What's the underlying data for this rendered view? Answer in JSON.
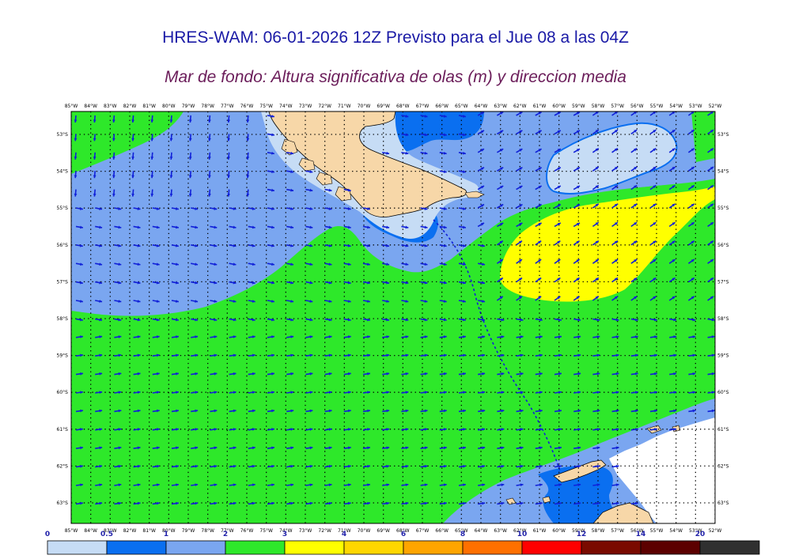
{
  "header": {
    "title": "HRES-WAM: 06-01-2026 12Z Previsto para el Jue 08 a las 04Z",
    "subtitle": "Mar de fondo: Altura significativa de olas (m) y direccion media"
  },
  "axes": {
    "lon_labels": [
      "85°W",
      "84°W",
      "83°W",
      "82°W",
      "81°W",
      "80°W",
      "79°W",
      "78°W",
      "77°W",
      "76°W",
      "75°W",
      "74°W",
      "73°W",
      "72°W",
      "71°W",
      "70°W",
      "69°W",
      "68°W",
      "67°W",
      "66°W",
      "65°W",
      "64°W",
      "63°W",
      "62°W",
      "61°W",
      "60°W",
      "59°W",
      "58°W",
      "57°W",
      "56°W",
      "55°W",
      "54°W",
      "53°W",
      "52°W"
    ],
    "lat_labels": [
      "53°S",
      "54°S",
      "55°S",
      "56°S",
      "57°S",
      "58°S",
      "59°S",
      "60°S",
      "61°S",
      "62°S",
      "63°S"
    ]
  },
  "colors": {
    "c1": "#c6dcf5",
    "c2": "#0a6ff0",
    "c3": "#7aa6f0",
    "c4": "#2ee82a",
    "c5": "#ffff00",
    "c6": "#ffd700",
    "c7": "#ffa500",
    "c8": "#ff7000",
    "c9": "#ff0000",
    "c10": "#7a0a00",
    "c11": "#5c0000",
    "c12": "#303030",
    "land": "#f7d7a8",
    "arrow": "#1020d8"
  },
  "colorbar": {
    "ticks": [
      "0",
      "0.5",
      "1",
      "2",
      "3",
      "4",
      "6",
      "8",
      "10",
      "12",
      "14",
      "20"
    ],
    "bins": [
      "#c6dcf5",
      "#0a6ff0",
      "#7aa6f0",
      "#2ee82a",
      "#ffff00",
      "#ffd700",
      "#ffa500",
      "#ff7000",
      "#ff0000",
      "#7a0a00",
      "#5c0000",
      "#303030"
    ]
  }
}
